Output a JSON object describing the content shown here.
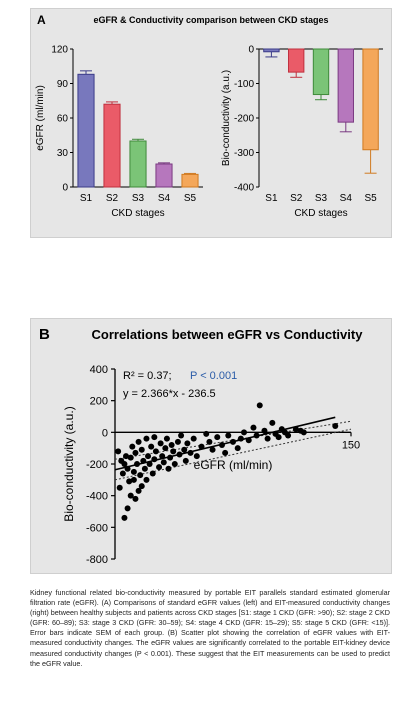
{
  "panel_a": {
    "letter": "A",
    "title": "eGFR & Conductivity comparison between CKD stages"
  },
  "panel_b": {
    "letter": "B",
    "title": "Correlations between eGFR vs Conductivity",
    "r2_text": "R² = 0.37;",
    "p_text": "P < 0.001",
    "equation": "y = 2.366*x - 236.5"
  },
  "caption": "Kidney functional related bio-conductivity measured by portable EIT parallels standard estimated glomerular filtration rate (eGFR). (A) Comparisons of standard eGFR values (left) and EIT-measured conductivity changes (right) between healthy subjects and patients across CKD stages [S1: stage 1 CKD (GFR: >90); S2: stage 2 CKD (GFR: 60–89); S3: stage 3 CKD (GFR: 30–59); S4: stage 4 CKD (GFR: 15–29); S5: stage 5 CKD (GFR: <15)]. Error bars indicate SEM of each group. (B) Scatter plot showing the correlation of eGFR values with EIT-measured conductivity changes. The eGFR values are significantly correlated to the portable EIT-kidney device measured conductivity changes (P < 0.001). These suggest that the EIT measurements can be used to predict the eGFR value.",
  "colors": {
    "S1": "#6b6bb8",
    "S2": "#ea4b5a",
    "S3": "#6fc06a",
    "S4": "#b06ab8",
    "S5": "#f5a04a",
    "S1_err": "#3b3b88",
    "S2_err": "#c0303e",
    "S3_err": "#3f8a3a",
    "S4_err": "#7a3a82",
    "S5_err": "#d07a20",
    "p_value": "#2b5ca8"
  },
  "chart_data": [
    {
      "type": "bar",
      "categories": [
        "S1",
        "S2",
        "S3",
        "S4",
        "S5"
      ],
      "values": [
        98,
        72,
        40,
        20,
        11
      ],
      "errors": [
        3,
        2,
        1.5,
        1,
        0.8
      ],
      "xlabel": "CKD stages",
      "ylabel": "eGFR (ml/min)",
      "ylim": [
        0,
        120
      ],
      "yticks": [
        "0",
        "30",
        "60",
        "90",
        "120"
      ]
    },
    {
      "type": "bar",
      "categories": [
        "S1",
        "S2",
        "S3",
        "S4",
        "S5"
      ],
      "values": [
        -8,
        -67,
        -132,
        -212,
        -292
      ],
      "errors": [
        15,
        15,
        15,
        28,
        68
      ],
      "xlabel": "CKD stages",
      "ylabel": "Bio-conductivity (a.u.)",
      "ylim": [
        -400,
        0
      ],
      "yticks": [
        "0",
        "-100",
        "-200",
        "-300",
        "-400"
      ]
    },
    {
      "type": "scatter",
      "xlabel": "eGFR (ml/min)",
      "ylabel": "Bio-conductivity (a.u.)",
      "xlim": [
        0,
        150
      ],
      "ylim": [
        -800,
        400
      ],
      "xticks": [
        "150"
      ],
      "yticks": [
        "400",
        "200",
        "0",
        "-200",
        "-400",
        "-600",
        "-800"
      ],
      "fit": {
        "slope": 2.366,
        "intercept": -236.5
      },
      "ci_upper": [
        [
          0,
          -170
        ],
        [
          150,
          70
        ]
      ],
      "ci_lower": [
        [
          0,
          -300
        ],
        [
          150,
          20
        ]
      ],
      "points": [
        [
          2,
          -120
        ],
        [
          3,
          -350
        ],
        [
          4,
          -180
        ],
        [
          5,
          -260
        ],
        [
          6,
          -540
        ],
        [
          6,
          -200
        ],
        [
          7,
          -150
        ],
        [
          8,
          -230
        ],
        [
          8,
          -480
        ],
        [
          9,
          -310
        ],
        [
          10,
          -160
        ],
        [
          10,
          -400
        ],
        [
          11,
          -90
        ],
        [
          12,
          -250
        ],
        [
          12,
          -300
        ],
        [
          13,
          -420
        ],
        [
          13,
          -130
        ],
        [
          14,
          -200
        ],
        [
          15,
          -370
        ],
        [
          15,
          -60
        ],
        [
          16,
          -270
        ],
        [
          17,
          -110
        ],
        [
          17,
          -340
        ],
        [
          18,
          -180
        ],
        [
          19,
          -230
        ],
        [
          20,
          -40
        ],
        [
          20,
          -300
        ],
        [
          21,
          -150
        ],
        [
          22,
          -200
        ],
        [
          23,
          -90
        ],
        [
          24,
          -260
        ],
        [
          25,
          -30
        ],
        [
          25,
          -170
        ],
        [
          26,
          -120
        ],
        [
          28,
          -220
        ],
        [
          29,
          -70
        ],
        [
          30,
          -150
        ],
        [
          31,
          -190
        ],
        [
          32,
          -100
        ],
        [
          33,
          -40
        ],
        [
          34,
          -230
        ],
        [
          35,
          -160
        ],
        [
          36,
          -80
        ],
        [
          37,
          -120
        ],
        [
          38,
          -200
        ],
        [
          40,
          -60
        ],
        [
          41,
          -140
        ],
        [
          42,
          -20
        ],
        [
          44,
          -110
        ],
        [
          45,
          -180
        ],
        [
          46,
          -70
        ],
        [
          48,
          -130
        ],
        [
          50,
          -40
        ],
        [
          52,
          -150
        ],
        [
          55,
          -90
        ],
        [
          58,
          -10
        ],
        [
          60,
          -60
        ],
        [
          62,
          -110
        ],
        [
          65,
          -30
        ],
        [
          68,
          -80
        ],
        [
          70,
          -130
        ],
        [
          72,
          -20
        ],
        [
          75,
          -60
        ],
        [
          78,
          -100
        ],
        [
          80,
          -40
        ],
        [
          82,
          0
        ],
        [
          85,
          -50
        ],
        [
          88,
          30
        ],
        [
          90,
          -20
        ],
        [
          92,
          170
        ],
        [
          95,
          10
        ],
        [
          97,
          -40
        ],
        [
          100,
          60
        ],
        [
          102,
          -10
        ],
        [
          104,
          -30
        ],
        [
          106,
          20
        ],
        [
          108,
          0
        ],
        [
          110,
          -20
        ],
        [
          115,
          20
        ],
        [
          118,
          10
        ],
        [
          120,
          0
        ],
        [
          140,
          40
        ]
      ]
    }
  ]
}
